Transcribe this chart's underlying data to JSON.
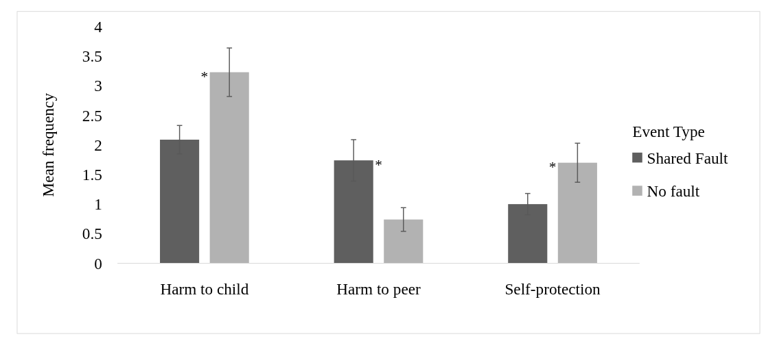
{
  "chart_data": {
    "type": "bar",
    "ylabel": "Mean frequency",
    "legend_title": "Event Type",
    "legend": "right",
    "categories": [
      "Harm to child",
      "Harm to peer",
      "Self-protection"
    ],
    "series": [
      {
        "name": "Shared Fault",
        "color": "#5f5f5f",
        "values": [
          2.09,
          1.74,
          1.0
        ],
        "errors": [
          0.24,
          0.35,
          0.18
        ]
      },
      {
        "name": "No fault",
        "color": "#b2b2b2",
        "values": [
          3.23,
          0.74,
          1.7
        ],
        "errors": [
          0.41,
          0.2,
          0.33
        ]
      }
    ],
    "ylim": [
      0,
      4
    ],
    "yticks": [
      0,
      0.5,
      1,
      1.5,
      2,
      2.5,
      3,
      3.5,
      4
    ],
    "grid": false,
    "annotations": [
      "*",
      "*",
      "*"
    ]
  }
}
